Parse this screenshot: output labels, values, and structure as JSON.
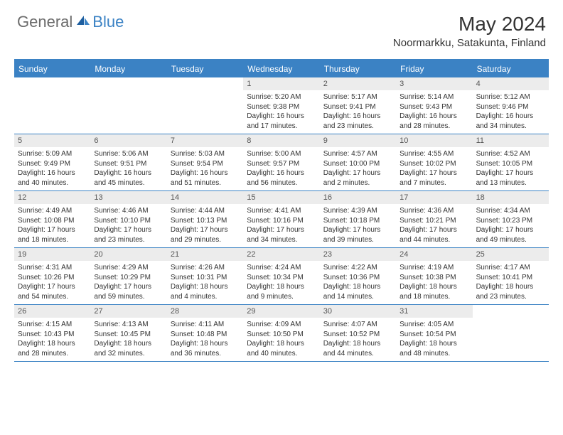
{
  "logo": {
    "general": "General",
    "blue": "Blue"
  },
  "title": "May 2024",
  "location": "Noormarkku, Satakunta, Finland",
  "colors": {
    "header_bg": "#3b82c4",
    "header_text": "#ffffff",
    "daynum_bg": "#ececec",
    "daynum_text": "#555555",
    "body_text": "#333333",
    "border": "#3b82c4"
  },
  "dayNames": [
    "Sunday",
    "Monday",
    "Tuesday",
    "Wednesday",
    "Thursday",
    "Friday",
    "Saturday"
  ],
  "weeks": [
    [
      {
        "n": "",
        "sr": "",
        "ss": "",
        "dl": ""
      },
      {
        "n": "",
        "sr": "",
        "ss": "",
        "dl": ""
      },
      {
        "n": "",
        "sr": "",
        "ss": "",
        "dl": ""
      },
      {
        "n": "1",
        "sr": "5:20 AM",
        "ss": "9:38 PM",
        "dl": "16 hours and 17 minutes."
      },
      {
        "n": "2",
        "sr": "5:17 AM",
        "ss": "9:41 PM",
        "dl": "16 hours and 23 minutes."
      },
      {
        "n": "3",
        "sr": "5:14 AM",
        "ss": "9:43 PM",
        "dl": "16 hours and 28 minutes."
      },
      {
        "n": "4",
        "sr": "5:12 AM",
        "ss": "9:46 PM",
        "dl": "16 hours and 34 minutes."
      }
    ],
    [
      {
        "n": "5",
        "sr": "5:09 AM",
        "ss": "9:49 PM",
        "dl": "16 hours and 40 minutes."
      },
      {
        "n": "6",
        "sr": "5:06 AM",
        "ss": "9:51 PM",
        "dl": "16 hours and 45 minutes."
      },
      {
        "n": "7",
        "sr": "5:03 AM",
        "ss": "9:54 PM",
        "dl": "16 hours and 51 minutes."
      },
      {
        "n": "8",
        "sr": "5:00 AM",
        "ss": "9:57 PM",
        "dl": "16 hours and 56 minutes."
      },
      {
        "n": "9",
        "sr": "4:57 AM",
        "ss": "10:00 PM",
        "dl": "17 hours and 2 minutes."
      },
      {
        "n": "10",
        "sr": "4:55 AM",
        "ss": "10:02 PM",
        "dl": "17 hours and 7 minutes."
      },
      {
        "n": "11",
        "sr": "4:52 AM",
        "ss": "10:05 PM",
        "dl": "17 hours and 13 minutes."
      }
    ],
    [
      {
        "n": "12",
        "sr": "4:49 AM",
        "ss": "10:08 PM",
        "dl": "17 hours and 18 minutes."
      },
      {
        "n": "13",
        "sr": "4:46 AM",
        "ss": "10:10 PM",
        "dl": "17 hours and 23 minutes."
      },
      {
        "n": "14",
        "sr": "4:44 AM",
        "ss": "10:13 PM",
        "dl": "17 hours and 29 minutes."
      },
      {
        "n": "15",
        "sr": "4:41 AM",
        "ss": "10:16 PM",
        "dl": "17 hours and 34 minutes."
      },
      {
        "n": "16",
        "sr": "4:39 AM",
        "ss": "10:18 PM",
        "dl": "17 hours and 39 minutes."
      },
      {
        "n": "17",
        "sr": "4:36 AM",
        "ss": "10:21 PM",
        "dl": "17 hours and 44 minutes."
      },
      {
        "n": "18",
        "sr": "4:34 AM",
        "ss": "10:23 PM",
        "dl": "17 hours and 49 minutes."
      }
    ],
    [
      {
        "n": "19",
        "sr": "4:31 AM",
        "ss": "10:26 PM",
        "dl": "17 hours and 54 minutes."
      },
      {
        "n": "20",
        "sr": "4:29 AM",
        "ss": "10:29 PM",
        "dl": "17 hours and 59 minutes."
      },
      {
        "n": "21",
        "sr": "4:26 AM",
        "ss": "10:31 PM",
        "dl": "18 hours and 4 minutes."
      },
      {
        "n": "22",
        "sr": "4:24 AM",
        "ss": "10:34 PM",
        "dl": "18 hours and 9 minutes."
      },
      {
        "n": "23",
        "sr": "4:22 AM",
        "ss": "10:36 PM",
        "dl": "18 hours and 14 minutes."
      },
      {
        "n": "24",
        "sr": "4:19 AM",
        "ss": "10:38 PM",
        "dl": "18 hours and 18 minutes."
      },
      {
        "n": "25",
        "sr": "4:17 AM",
        "ss": "10:41 PM",
        "dl": "18 hours and 23 minutes."
      }
    ],
    [
      {
        "n": "26",
        "sr": "4:15 AM",
        "ss": "10:43 PM",
        "dl": "18 hours and 28 minutes."
      },
      {
        "n": "27",
        "sr": "4:13 AM",
        "ss": "10:45 PM",
        "dl": "18 hours and 32 minutes."
      },
      {
        "n": "28",
        "sr": "4:11 AM",
        "ss": "10:48 PM",
        "dl": "18 hours and 36 minutes."
      },
      {
        "n": "29",
        "sr": "4:09 AM",
        "ss": "10:50 PM",
        "dl": "18 hours and 40 minutes."
      },
      {
        "n": "30",
        "sr": "4:07 AM",
        "ss": "10:52 PM",
        "dl": "18 hours and 44 minutes."
      },
      {
        "n": "31",
        "sr": "4:05 AM",
        "ss": "10:54 PM",
        "dl": "18 hours and 48 minutes."
      },
      {
        "n": "",
        "sr": "",
        "ss": "",
        "dl": ""
      }
    ]
  ],
  "labels": {
    "sunrise": "Sunrise:",
    "sunset": "Sunset:",
    "daylight": "Daylight:"
  }
}
